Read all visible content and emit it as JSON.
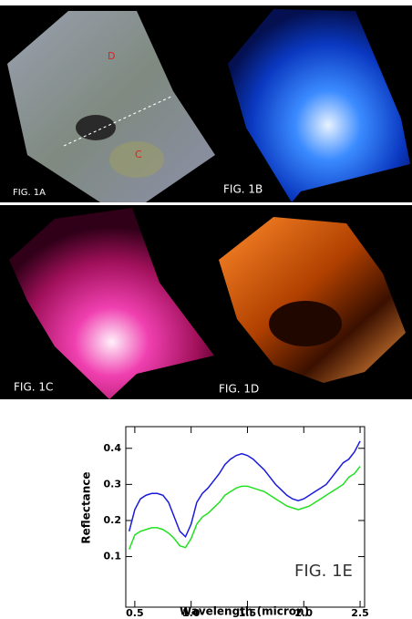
{
  "panels": [
    {
      "label": "FIG. 1A",
      "markers": [
        "D",
        "C"
      ]
    },
    {
      "label": "FIG. 1B"
    },
    {
      "label": "FIG. 1C"
    },
    {
      "label": "FIG. 1D"
    }
  ],
  "chart_data": {
    "type": "line",
    "annotation": "FIG. 1E",
    "x_label": "Wavelength (micron)",
    "y_label": "Reflectance",
    "x": [
      0.45,
      0.5,
      0.55,
      0.6,
      0.65,
      0.7,
      0.75,
      0.8,
      0.85,
      0.9,
      0.95,
      1.0,
      1.05,
      1.1,
      1.15,
      1.2,
      1.25,
      1.3,
      1.35,
      1.4,
      1.45,
      1.5,
      1.55,
      1.6,
      1.65,
      1.7,
      1.75,
      1.8,
      1.85,
      1.9,
      1.95,
      2.0,
      2.05,
      2.1,
      2.15,
      2.2,
      2.25,
      2.3,
      2.35,
      2.4,
      2.45,
      2.5
    ],
    "series": [
      {
        "color": "#1a1adc",
        "values": [
          0.17,
          0.23,
          0.26,
          0.27,
          0.275,
          0.275,
          0.27,
          0.25,
          0.21,
          0.17,
          0.155,
          0.19,
          0.25,
          0.275,
          0.29,
          0.31,
          0.33,
          0.355,
          0.37,
          0.38,
          0.385,
          0.38,
          0.37,
          0.355,
          0.34,
          0.32,
          0.3,
          0.285,
          0.27,
          0.26,
          0.255,
          0.26,
          0.27,
          0.28,
          0.29,
          0.3,
          0.32,
          0.34,
          0.36,
          0.37,
          0.39,
          0.42
        ]
      },
      {
        "color": "#22e022",
        "values": [
          0.12,
          0.16,
          0.17,
          0.175,
          0.18,
          0.18,
          0.175,
          0.165,
          0.15,
          0.13,
          0.125,
          0.15,
          0.19,
          0.21,
          0.22,
          0.235,
          0.25,
          0.27,
          0.28,
          0.29,
          0.295,
          0.295,
          0.29,
          0.285,
          0.28,
          0.27,
          0.26,
          0.25,
          0.24,
          0.235,
          0.23,
          0.235,
          0.24,
          0.25,
          0.26,
          0.27,
          0.28,
          0.29,
          0.3,
          0.32,
          0.33,
          0.35
        ]
      }
    ],
    "xlim": [
      0.42,
      2.54
    ],
    "ylim": [
      -0.04,
      0.46
    ],
    "xticks": [
      0.5,
      {
        "value": 1,
        "label": "1.0"
      },
      1.5,
      {
        "value": 2,
        "label": "2.0"
      },
      2.5
    ],
    "yticks": [
      0.1,
      0.2,
      0.3,
      0.4
    ]
  }
}
